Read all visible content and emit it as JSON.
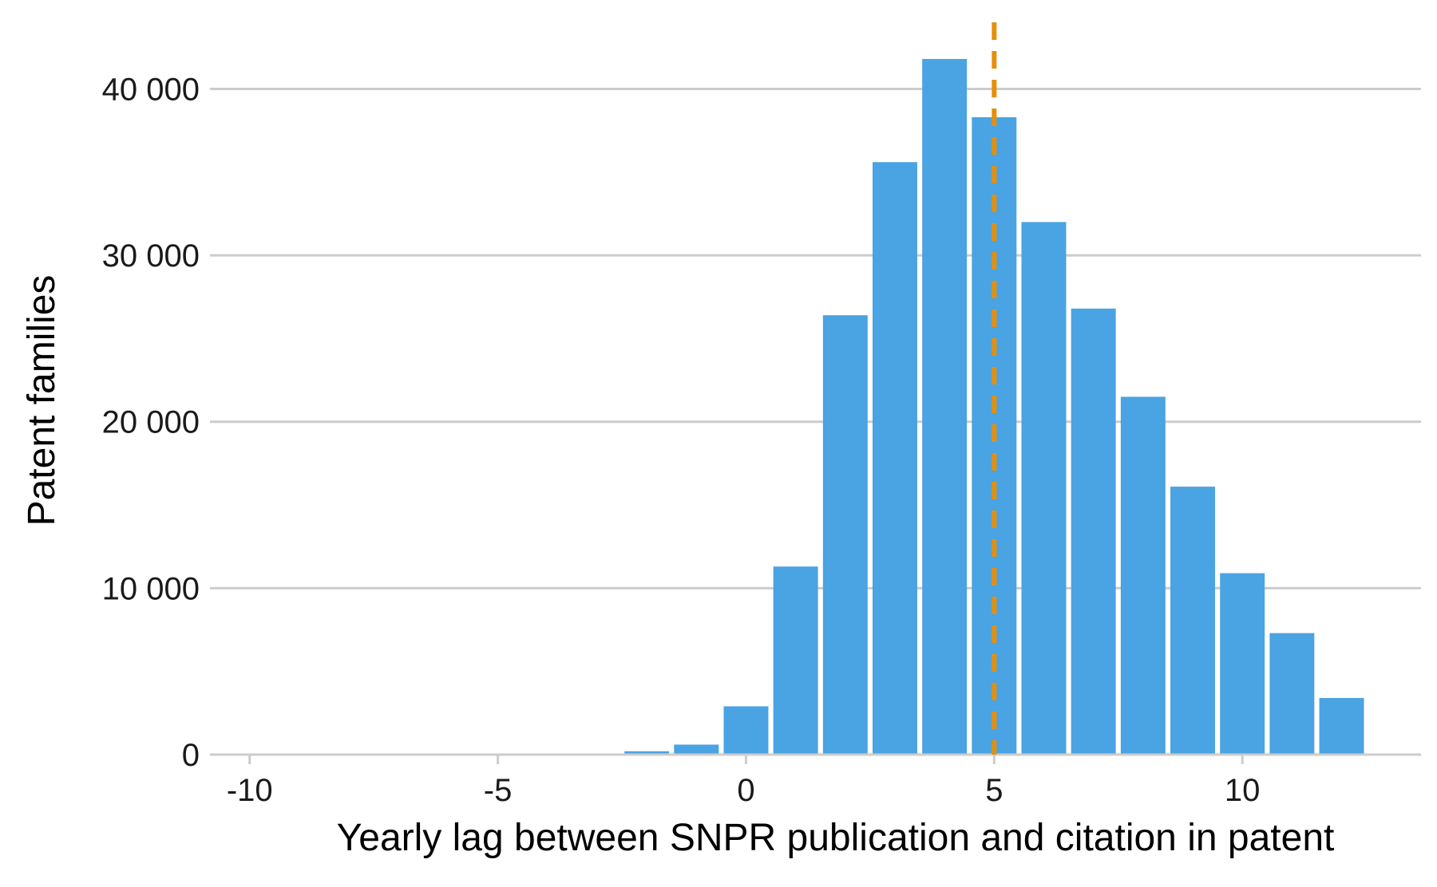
{
  "chart_data": {
    "type": "bar",
    "title": "",
    "xlabel": "Yearly lag between SNPR publication and citation in patent",
    "ylabel": "Patent families",
    "x": [
      -10,
      -9,
      -8,
      -7,
      -6,
      -5,
      -4,
      -3,
      -2,
      -1,
      0,
      1,
      2,
      3,
      4,
      5,
      6,
      7,
      8,
      9,
      10,
      11,
      12
    ],
    "values": [
      0,
      0,
      0,
      0,
      0,
      0,
      0,
      50,
      200,
      600,
      2900,
      11300,
      26400,
      35600,
      41800,
      38300,
      32000,
      26800,
      21500,
      16100,
      10900,
      7300,
      3400
    ],
    "xlim": [
      -10.8,
      13.6
    ],
    "ylim": [
      0,
      44000
    ],
    "x_ticks": [
      -10,
      -5,
      0,
      5,
      10
    ],
    "x_tick_labels": [
      "-10",
      "-5",
      "0",
      "5",
      "10"
    ],
    "y_ticks": [
      0,
      10000,
      20000,
      30000,
      40000
    ],
    "y_tick_labels": [
      "0",
      "10 000",
      "20 000",
      "30 000",
      "40 000"
    ],
    "grid": "horizontal",
    "reference_line": {
      "x": 5,
      "style": "dashed"
    },
    "colors": {
      "bar": "#4aa3e2",
      "reference_line": "#e58f0b",
      "grid": "#cccccc",
      "axis": "#cccccc"
    }
  }
}
